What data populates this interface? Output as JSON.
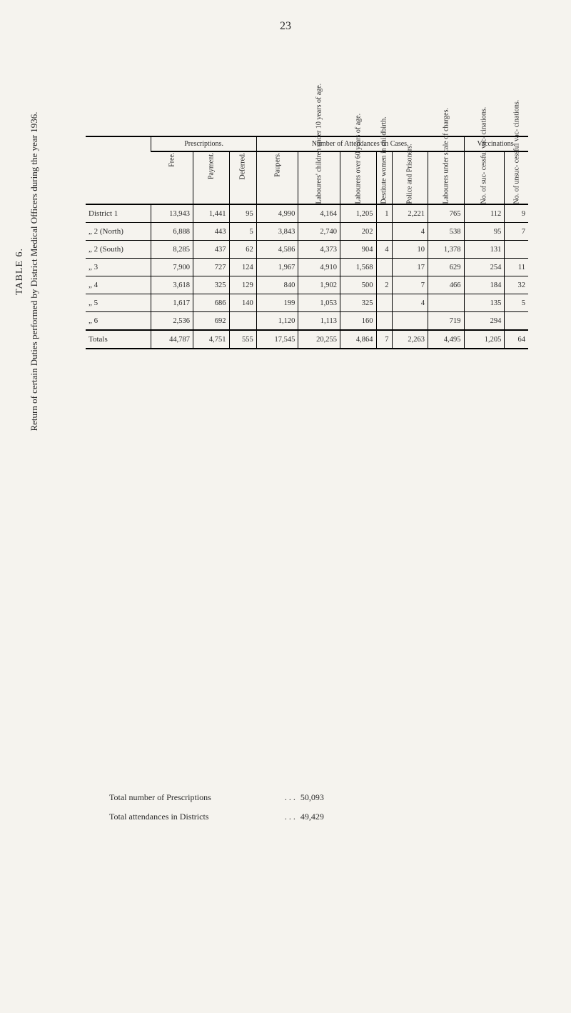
{
  "page_number": "23",
  "title": {
    "main": "TABLE 6.",
    "sub": "Return of certain Duties performed by District Medical Officers during the year 1936."
  },
  "group_headers": {
    "prescriptions": "Prescriptions.",
    "attendances": "Number of Attendances on Cases.",
    "vaccinations": "Vaccinations."
  },
  "column_headers": [
    "Free.",
    "Payment.",
    "Deferred.",
    "Paupers.",
    "Labourers' children under 10 years of age.",
    "Labourers over 60 years of age.",
    "Destitute women in childbirth.",
    "Police and Prisoners.",
    "Labourers under scale of charges.",
    "No. of suc- cessful vac- cinations.",
    "No. of unsuc- cessful vac- cinations."
  ],
  "district_header": "",
  "rows": [
    {
      "district": "District 1",
      "cells": [
        "13,943",
        "1,441",
        "95",
        "4,990",
        "4,164",
        "1,205",
        "1",
        "2,221",
        "765",
        "112",
        "9"
      ]
    },
    {
      "district": "„ 2 (North)",
      "cells": [
        "6,888",
        "443",
        "5",
        "3,843",
        "2,740",
        "202",
        "",
        "4",
        "538",
        "95",
        "7"
      ]
    },
    {
      "district": "„ 2 (South)",
      "cells": [
        "8,285",
        "437",
        "62",
        "4,586",
        "4,373",
        "904",
        "4",
        "10",
        "1,378",
        "131",
        ""
      ]
    },
    {
      "district": "„ 3",
      "cells": [
        "7,900",
        "727",
        "124",
        "1,967",
        "4,910",
        "1,568",
        "",
        "17",
        "629",
        "254",
        "11"
      ]
    },
    {
      "district": "„ 4",
      "cells": [
        "3,618",
        "325",
        "129",
        "840",
        "1,902",
        "500",
        "2",
        "7",
        "466",
        "184",
        "32"
      ]
    },
    {
      "district": "„ 5",
      "cells": [
        "1,617",
        "686",
        "140",
        "199",
        "1,053",
        "325",
        "",
        "4",
        "",
        "135",
        "5"
      ]
    },
    {
      "district": "„ 6",
      "cells": [
        "2,536",
        "692",
        "",
        "1,120",
        "1,113",
        "160",
        "",
        "",
        "719",
        "294",
        ""
      ]
    }
  ],
  "totals": {
    "label": "Totals",
    "cells": [
      "44,787",
      "4,751",
      "555",
      "17,545",
      "20,255",
      "4,864",
      "7",
      "2,263",
      "4,495",
      "1,205",
      "64"
    ]
  },
  "footer": {
    "prescriptions_label": "Total number of Prescriptions",
    "prescriptions_value": "50,093",
    "attendances_label": "Total attendances in Districts",
    "attendances_value": "49,429"
  },
  "style": {
    "page_bg": "#f5f3ee",
    "text_color": "#2a2a2a",
    "rule_color": "#000000",
    "font": "Georgia, 'Times New Roman', serif"
  }
}
